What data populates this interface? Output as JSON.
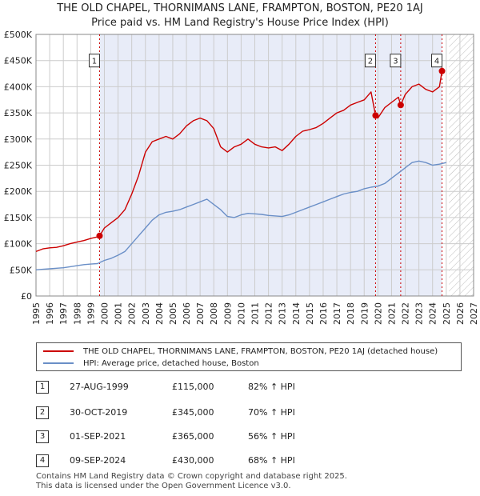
{
  "title_line1": "THE OLD CHAPEL, THORNIMANS LANE, FRAMPTON, BOSTON, PE20 1AJ",
  "title_line2": "Price paid vs. HM Land Registry's House Price Index (HPI)",
  "colors": {
    "red": "#cc0000",
    "blue": "#6a8fc7",
    "shade": "#e8ecf8",
    "grid": "#cccccc"
  },
  "chart_data": {
    "type": "line",
    "xlim": [
      1995,
      2027
    ],
    "ylim": [
      0,
      500000
    ],
    "y_ticks": [
      0,
      50000,
      100000,
      150000,
      200000,
      250000,
      300000,
      350000,
      400000,
      450000,
      500000
    ],
    "y_tick_labels": [
      "£0",
      "£50K",
      "£100K",
      "£150K",
      "£200K",
      "£250K",
      "£300K",
      "£350K",
      "£400K",
      "£450K",
      "£500K"
    ],
    "x_ticks": [
      "1995",
      "1996",
      "1997",
      "1998",
      "1999",
      "2000",
      "2001",
      "2002",
      "2003",
      "2004",
      "2005",
      "2006",
      "2007",
      "2008",
      "2009",
      "2010",
      "2011",
      "2012",
      "2013",
      "2014",
      "2015",
      "2016",
      "2017",
      "2018",
      "2019",
      "2020",
      "2021",
      "2022",
      "2023",
      "2024",
      "2025",
      "2026",
      "2027"
    ],
    "shaded_range": [
      1999.65,
      2024.69
    ],
    "hatched_from": 2025.2,
    "series": [
      {
        "name": "THE OLD CHAPEL, THORNIMANS LANE, FRAMPTON, BOSTON, PE20 1AJ (detached house)",
        "x": [
          1995.0,
          1995.5,
          1996.0,
          1996.5,
          1997.0,
          1997.5,
          1998.0,
          1998.5,
          1999.0,
          1999.5,
          1999.65,
          2000.0,
          2000.5,
          2001.0,
          2001.5,
          2002.0,
          2002.5,
          2003.0,
          2003.5,
          2004.0,
          2004.5,
          2005.0,
          2005.5,
          2006.0,
          2006.5,
          2007.0,
          2007.5,
          2008.0,
          2008.5,
          2009.0,
          2009.5,
          2010.0,
          2010.5,
          2011.0,
          2011.5,
          2012.0,
          2012.5,
          2013.0,
          2013.5,
          2014.0,
          2014.5,
          2015.0,
          2015.5,
          2016.0,
          2016.5,
          2017.0,
          2017.5,
          2018.0,
          2018.5,
          2019.0,
          2019.5,
          2019.83,
          2020.0,
          2020.5,
          2021.0,
          2021.5,
          2021.67,
          2022.0,
          2022.5,
          2023.0,
          2023.5,
          2024.0,
          2024.5,
          2024.69
        ],
        "values": [
          85000,
          90000,
          92000,
          93000,
          96000,
          100000,
          103000,
          106000,
          110000,
          113000,
          115000,
          130000,
          140000,
          150000,
          165000,
          195000,
          230000,
          275000,
          295000,
          300000,
          305000,
          300000,
          310000,
          325000,
          335000,
          340000,
          335000,
          320000,
          285000,
          275000,
          285000,
          290000,
          300000,
          290000,
          285000,
          283000,
          285000,
          278000,
          290000,
          305000,
          315000,
          318000,
          322000,
          330000,
          340000,
          350000,
          355000,
          365000,
          370000,
          375000,
          390000,
          345000,
          340000,
          360000,
          370000,
          380000,
          365000,
          385000,
          400000,
          405000,
          395000,
          390000,
          400000,
          430000
        ]
      },
      {
        "name": "HPI: Average price, detached house, Boston",
        "x": [
          1995.0,
          1995.5,
          1996.0,
          1996.5,
          1997.0,
          1997.5,
          1998.0,
          1998.5,
          1999.0,
          1999.5,
          2000.0,
          2000.5,
          2001.0,
          2001.5,
          2002.0,
          2002.5,
          2003.0,
          2003.5,
          2004.0,
          2004.5,
          2005.0,
          2005.5,
          2006.0,
          2006.5,
          2007.0,
          2007.5,
          2008.0,
          2008.5,
          2009.0,
          2009.5,
          2010.0,
          2010.5,
          2011.0,
          2011.5,
          2012.0,
          2012.5,
          2013.0,
          2013.5,
          2014.0,
          2014.5,
          2015.0,
          2015.5,
          2016.0,
          2016.5,
          2017.0,
          2017.5,
          2018.0,
          2018.5,
          2019.0,
          2019.5,
          2020.0,
          2020.5,
          2021.0,
          2021.5,
          2022.0,
          2022.5,
          2023.0,
          2023.5,
          2024.0,
          2024.5,
          2025.0
        ],
        "values": [
          50000,
          51000,
          52000,
          53000,
          54000,
          56000,
          58000,
          60000,
          61000,
          62000,
          68000,
          72000,
          78000,
          85000,
          100000,
          115000,
          130000,
          145000,
          155000,
          160000,
          162000,
          165000,
          170000,
          175000,
          180000,
          185000,
          175000,
          165000,
          152000,
          150000,
          155000,
          158000,
          157000,
          156000,
          154000,
          153000,
          152000,
          155000,
          160000,
          165000,
          170000,
          175000,
          180000,
          185000,
          190000,
          195000,
          198000,
          200000,
          205000,
          208000,
          210000,
          215000,
          225000,
          235000,
          245000,
          255000,
          258000,
          255000,
          250000,
          252000,
          255000
        ]
      }
    ],
    "sales": [
      {
        "label": "1",
        "x": 1999.65,
        "price": 115000,
        "marker_label_y": 450000
      },
      {
        "label": "2",
        "x": 2019.83,
        "price": 345000,
        "marker_label_y": 450000
      },
      {
        "label": "3",
        "x": 2021.67,
        "price": 365000,
        "marker_label_y": 450000
      },
      {
        "label": "4",
        "x": 2024.69,
        "price": 430000,
        "marker_label_y": 450000
      }
    ]
  },
  "legend": {
    "red_label": "THE OLD CHAPEL, THORNIMANS LANE, FRAMPTON, BOSTON, PE20 1AJ (detached house)",
    "blue_label": "HPI: Average price, detached house, Boston"
  },
  "transactions": [
    {
      "num": "1",
      "date": "27-AUG-1999",
      "price": "£115,000",
      "hpi": "82% ↑ HPI"
    },
    {
      "num": "2",
      "date": "30-OCT-2019",
      "price": "£345,000",
      "hpi": "70% ↑ HPI"
    },
    {
      "num": "3",
      "date": "01-SEP-2021",
      "price": "£365,000",
      "hpi": "56% ↑ HPI"
    },
    {
      "num": "4",
      "date": "09-SEP-2024",
      "price": "£430,000",
      "hpi": "68% ↑ HPI"
    }
  ],
  "footer_line1": "Contains HM Land Registry data © Crown copyright and database right 2025.",
  "footer_line2": "This data is licensed under the Open Government Licence v3.0."
}
